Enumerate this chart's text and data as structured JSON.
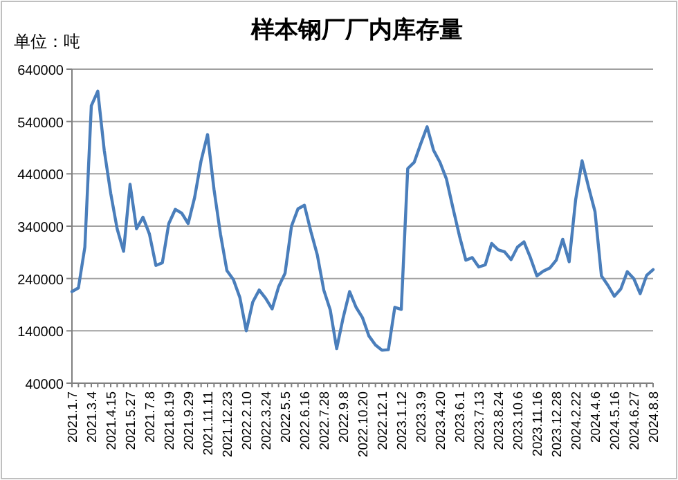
{
  "chart_data": {
    "type": "line",
    "title": "样本钢厂厂内库存量",
    "annotations": [
      "单位：吨"
    ],
    "categories": [
      "2021.1.7",
      null,
      null,
      "2021.3.4",
      null,
      null,
      "2021.4.15",
      null,
      null,
      "2021.5.27",
      null,
      null,
      "2021.7.8",
      null,
      null,
      "2021.8.19",
      null,
      null,
      "2021.9.29",
      null,
      null,
      "2021.11.11",
      null,
      null,
      "2021.12.23",
      null,
      null,
      "2022.2.10",
      null,
      null,
      "2022.3.24",
      null,
      null,
      "2022.5.5",
      null,
      null,
      "2022.6.16",
      null,
      null,
      "2022.7.28",
      null,
      null,
      "2022.9.8",
      null,
      null,
      "2022.10.20",
      null,
      null,
      "2022.12.1",
      null,
      null,
      "2023.1.12",
      null,
      null,
      "2023.3.9",
      null,
      null,
      "2023.4.20",
      null,
      null,
      "2023.6.1",
      null,
      null,
      "2023.7.13",
      null,
      null,
      "2023.8.24",
      null,
      null,
      "2023.10.6",
      null,
      null,
      "2023.11.16",
      null,
      null,
      "2023.12.28",
      null,
      null,
      "2024.2.22",
      null,
      null,
      "2024.4.6",
      null,
      null,
      "2024.5.16",
      null,
      null,
      "2024.6.27",
      null,
      null,
      "2024.8.8"
    ],
    "series": [
      {
        "color": "#4a7ebb",
        "values": [
          215000,
          222000,
          300000,
          570000,
          598000,
          485000,
          403000,
          335000,
          292000,
          420000,
          335000,
          357000,
          325000,
          265000,
          270000,
          345000,
          372000,
          365000,
          345000,
          395000,
          465000,
          515000,
          410000,
          325000,
          255000,
          238000,
          204000,
          140000,
          195000,
          218000,
          202000,
          182000,
          224000,
          250000,
          340000,
          373000,
          380000,
          330000,
          285000,
          218000,
          180000,
          106000,
          165000,
          215000,
          185000,
          165000,
          130000,
          113000,
          103000,
          104000,
          185000,
          181000,
          450000,
          462000,
          497000,
          530000,
          485000,
          462000,
          430000,
          375000,
          322000,
          275000,
          280000,
          262000,
          266000,
          307000,
          295000,
          291000,
          276000,
          300000,
          310000,
          280000,
          245000,
          254000,
          260000,
          275000,
          315000,
          272000,
          390000,
          465000,
          415000,
          368000,
          245000,
          227000,
          206000,
          220000,
          253000,
          240000,
          211000,
          246000,
          257000
        ]
      }
    ],
    "ylim": [
      40000,
      640000
    ],
    "yticks": [
      40000,
      140000,
      240000,
      340000,
      440000,
      540000,
      640000
    ],
    "grid": "y",
    "marker": "none",
    "line_style": "solid"
  }
}
